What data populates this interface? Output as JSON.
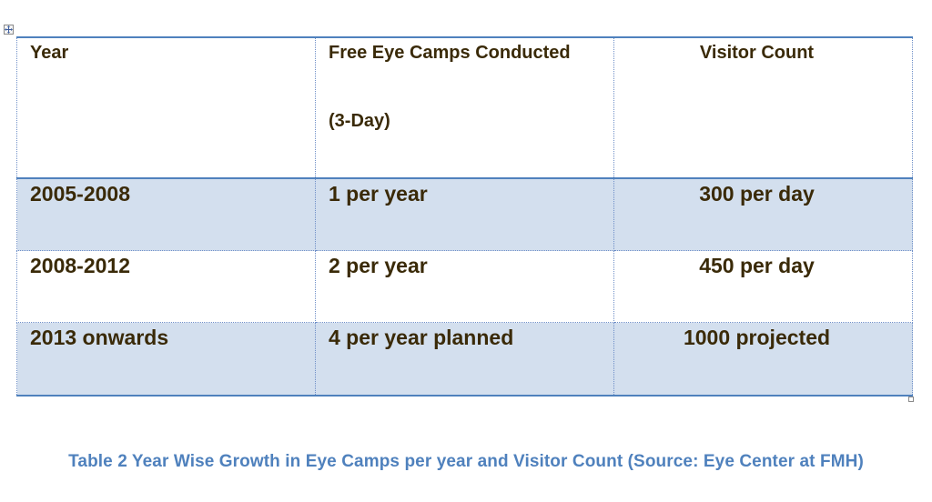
{
  "table": {
    "headers": {
      "year": "Year",
      "camps_line1": "Free Eye Camps Conducted",
      "camps_line2": "(3-Day)",
      "visitors": "Visitor Count"
    },
    "rows": [
      {
        "year": "2005-2008",
        "camps": "1 per year",
        "visitors": "300 per day"
      },
      {
        "year": "2008-2012",
        "camps": "2 per year",
        "visitors": "450 per day"
      },
      {
        "year": "2013 onwards",
        "camps": "4 per year planned",
        "visitors": "1000 projected"
      }
    ]
  },
  "caption": "Table 2 Year Wise Growth in Eye Camps per year and Visitor Count (Source: Eye Center at FMH)",
  "icons": {
    "move_handle": "table-move-icon",
    "resize_handle": "table-resize-icon"
  },
  "colors": {
    "border": "#4f81bd",
    "row_shade": "#d3dfee",
    "text": "#3a2a08",
    "caption": "#4f81bd"
  }
}
